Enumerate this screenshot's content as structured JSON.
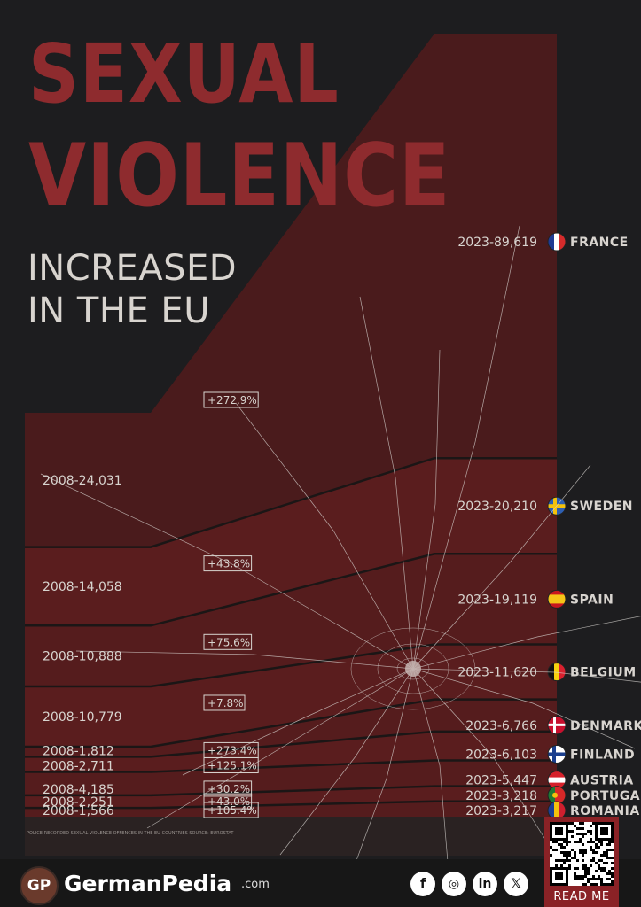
{
  "title_line1": "SEXUAL",
  "title_line2": "VIOLENCE",
  "subtitle_line1": "INCREASED",
  "subtitle_line2": "IN THE EU",
  "colors": {
    "background": "#1d1d1f",
    "title": "#8e2b2e",
    "area": "#4a1b1c",
    "panel": "#651f20",
    "text": "#d8d4cf",
    "divider": "#1b1616"
  },
  "source_note": "POLICE-RECORDED SEXUAL VIOLENCE OFFENCES IN THE EU-COUNTRIES SOURCE: EUROSTAT",
  "footer": {
    "logo": "GP",
    "brand": "GermanPedia",
    "brand_tld": ".com",
    "social": [
      {
        "icon": "facebook-icon",
        "glyph": "f"
      },
      {
        "icon": "instagram-icon",
        "glyph": "◎"
      },
      {
        "icon": "linkedin-icon",
        "glyph": "in"
      },
      {
        "icon": "x-icon",
        "glyph": "𝕏"
      }
    ],
    "qr_label": "READ ME"
  },
  "chart_data": {
    "type": "area",
    "rows": [
      {
        "country": "FRANCE",
        "flag": "france-flag-icon",
        "v2008": 24031,
        "label2008": "2008-24,031",
        "v2023": 89619,
        "label2023": "2023-89,619",
        "change": "+272.9%"
      },
      {
        "country": "SWEDEN",
        "flag": "sweden-flag-icon",
        "v2008": 14058,
        "label2008": "2008-14,058",
        "v2023": 20210,
        "label2023": "2023-20,210",
        "change": "+43.8%"
      },
      {
        "country": "SPAIN",
        "flag": "spain-flag-icon",
        "v2008": 10888,
        "label2008": "2008-10,888",
        "v2023": 19119,
        "label2023": "2023-19,119",
        "change": "+75.6%"
      },
      {
        "country": "BELGIUM",
        "flag": "belgium-flag-icon",
        "v2008": 10779,
        "label2008": "2008-10,779",
        "v2023": 11620,
        "label2023": "2023-11,620",
        "change": "+7.8%"
      },
      {
        "country": "DENMARK",
        "flag": "denmark-flag-icon",
        "v2008": 1812,
        "label2008": "2008-1,812",
        "v2023": 6766,
        "label2023": "2023-6,766",
        "change": "+273.4%"
      },
      {
        "country": "FINLAND",
        "flag": "finland-flag-icon",
        "v2008": 2711,
        "label2008": "2008-2,711",
        "v2023": 6103,
        "label2023": "2023-6,103",
        "change": "+125.1%"
      },
      {
        "country": "AUSTRIA",
        "flag": "austria-flag-icon",
        "v2008": 4185,
        "label2008": "2008-4,185",
        "v2023": 5447,
        "label2023": "2023-5,447",
        "change": "+30.2%"
      },
      {
        "country": "PORTUGAL",
        "flag": "portugal-flag-icon",
        "v2008": 2251,
        "label2008": "2008-2,251",
        "v2023": 3218,
        "label2023": "2023-3,218",
        "change": "+43.0%"
      },
      {
        "country": "ROMANIA",
        "flag": "romania-flag-icon",
        "v2008": 1566,
        "label2008": "2008-1,566",
        "v2023": 3217,
        "label2023": "2023-3,217",
        "change": "+105.4%"
      }
    ]
  }
}
